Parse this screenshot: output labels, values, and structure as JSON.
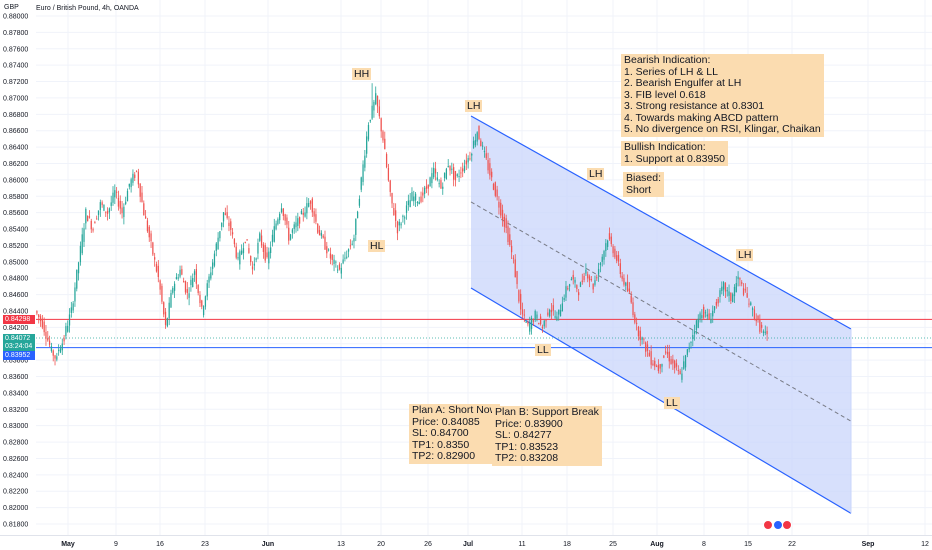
{
  "header": {
    "title": "Euro / British Pound, 4h, OANDA",
    "currency": "GBP"
  },
  "price_tags": {
    "resistance": "0.84298",
    "last_price": "0.84072",
    "countdown": "03:24:04",
    "support": "0.83952"
  },
  "labels": {
    "hh": "HH",
    "hl": "HL",
    "lh1": "LH",
    "lh2": "LH",
    "lh3": "LH",
    "ll1": "LL",
    "ll2": "LL"
  },
  "notes": {
    "bearish": "Bearish Indication:\n1. Series of LH & LL\n2. Bearish Engulfer at LH\n3. FIB level 0.618\n3. Strong resistance at 0.8301\n4. Towards making ABCD pattern\n5. No divergence on RSI, Klingar, Chaikan",
    "bullish": "Bullish Indication:\n1. Support at 0.83950",
    "biased": "Biased:\nShort",
    "plan_a": "Plan A: Short Now\nPrice: 0.84085\nSL: 0.84700\nTP1: 0.8350\nTP2: 0.82900",
    "plan_b": "Plan B: Support Break\nPrice: 0.83900\nSL: 0.84277\nTP1: 0.83523\nTP2: 0.83208"
  },
  "colors": {
    "up": "#26a69a",
    "down": "#ef5350",
    "channel_fill": "#c9d6fb",
    "channel_line": "#2962ff",
    "resistance_line": "#f23645",
    "support_line": "#2962ff",
    "note_bg": "#fbdcb0"
  },
  "chart_data": {
    "type": "candlestick",
    "title": "Euro / British Pound, 4h, OANDA",
    "ylim": [
      0.8176,
      0.8888
    ],
    "y_ticks": [
      "0.88000",
      "0.87800",
      "0.87600",
      "0.87400",
      "0.87200",
      "0.87000",
      "0.86800",
      "0.86600",
      "0.86400",
      "0.86200",
      "0.86000",
      "0.85800",
      "0.85600",
      "0.85400",
      "0.85200",
      "0.85000",
      "0.84800",
      "0.84600",
      "0.84400",
      "0.84200",
      "0.84000",
      "0.83800",
      "0.83600",
      "0.83400",
      "0.83200",
      "0.83000",
      "0.82800",
      "0.82600",
      "0.82400",
      "0.82200",
      "0.82000",
      "0.81800"
    ],
    "x_ticks": [
      "May",
      "9",
      "16",
      "23",
      "Jun",
      "13",
      "20",
      "26",
      "Jul",
      "11",
      "18",
      "25",
      "Aug",
      "8",
      "15",
      "22",
      "Sep",
      "12"
    ],
    "horizontal_lines": [
      {
        "price": 0.84298,
        "role": "resistance"
      },
      {
        "price": 0.83952,
        "role": "support"
      }
    ],
    "channel": {
      "upper": [
        [
          "Jul",
          0.8678
        ],
        [
          "end",
          0.8418
        ]
      ],
      "lower": [
        [
          "Jul",
          0.8468
        ],
        [
          "end",
          0.8193
        ]
      ]
    },
    "swing_points": [
      {
        "label": "HH",
        "price": 0.8718
      },
      {
        "label": "HL",
        "price": 0.853
      },
      {
        "label": "LH",
        "price": 0.8678
      },
      {
        "label": "LH",
        "price": 0.8588
      },
      {
        "label": "LH",
        "price": 0.8488
      },
      {
        "label": "LL",
        "price": 0.8418
      },
      {
        "label": "LL",
        "price": 0.835
      }
    ],
    "close_path": [
      [
        0.844,
        0.8425
      ],
      [
        0.8425,
        0.8398
      ],
      [
        0.8395,
        0.838
      ],
      [
        0.839,
        0.8405
      ],
      [
        0.841,
        0.844
      ],
      [
        0.844,
        0.85
      ],
      [
        0.85,
        0.856
      ],
      [
        0.856,
        0.854
      ],
      [
        0.8545,
        0.857
      ],
      [
        0.857,
        0.856
      ],
      [
        0.856,
        0.8585
      ],
      [
        0.8585,
        0.856
      ],
      [
        0.856,
        0.8595
      ],
      [
        0.8595,
        0.861
      ],
      [
        0.861,
        0.856
      ],
      [
        0.856,
        0.852
      ],
      [
        0.852,
        0.848
      ],
      [
        0.848,
        0.842
      ],
      [
        0.842,
        0.847
      ],
      [
        0.847,
        0.849
      ],
      [
        0.849,
        0.846
      ],
      [
        0.846,
        0.849
      ],
      [
        0.849,
        0.844
      ],
      [
        0.844,
        0.848
      ],
      [
        0.848,
        0.852
      ],
      [
        0.852,
        0.856
      ],
      [
        0.856,
        0.854
      ],
      [
        0.854,
        0.85
      ],
      [
        0.85,
        0.853
      ],
      [
        0.853,
        0.849
      ],
      [
        0.849,
        0.853
      ],
      [
        0.853,
        0.85
      ],
      [
        0.85,
        0.854
      ],
      [
        0.854,
        0.857
      ],
      [
        0.857,
        0.853
      ],
      [
        0.853,
        0.8545
      ],
      [
        0.8545,
        0.856
      ],
      [
        0.856,
        0.8575
      ],
      [
        0.8575,
        0.854
      ],
      [
        0.854,
        0.852
      ],
      [
        0.852,
        0.85
      ],
      [
        0.85,
        0.849
      ],
      [
        0.849,
        0.851
      ],
      [
        0.851,
        0.853
      ],
      [
        0.853,
        0.86
      ],
      [
        0.86,
        0.867
      ],
      [
        0.867,
        0.87
      ],
      [
        0.87,
        0.865
      ],
      [
        0.865,
        0.858
      ],
      [
        0.858,
        0.854
      ],
      [
        0.854,
        0.856
      ],
      [
        0.856,
        0.858
      ],
      [
        0.858,
        0.8575
      ],
      [
        0.8575,
        0.859
      ],
      [
        0.859,
        0.861
      ],
      [
        0.861,
        0.859
      ],
      [
        0.859,
        0.862
      ],
      [
        0.862,
        0.86
      ],
      [
        0.86,
        0.8615
      ],
      [
        0.8615,
        0.863
      ],
      [
        0.863,
        0.866
      ],
      [
        0.866,
        0.863
      ],
      [
        0.863,
        0.86
      ],
      [
        0.86,
        0.857
      ],
      [
        0.857,
        0.854
      ],
      [
        0.854,
        0.85
      ],
      [
        0.85,
        0.844
      ],
      [
        0.844,
        0.842
      ],
      [
        0.842,
        0.8435
      ],
      [
        0.8435,
        0.842
      ],
      [
        0.842,
        0.8445
      ],
      [
        0.8445,
        0.843
      ],
      [
        0.843,
        0.846
      ],
      [
        0.846,
        0.848
      ],
      [
        0.848,
        0.8465
      ],
      [
        0.8465,
        0.849
      ],
      [
        0.849,
        0.847
      ],
      [
        0.847,
        0.85
      ],
      [
        0.85,
        0.853
      ],
      [
        0.853,
        0.851
      ],
      [
        0.851,
        0.848
      ],
      [
        0.848,
        0.846
      ],
      [
        0.846,
        0.842
      ],
      [
        0.842,
        0.84
      ],
      [
        0.84,
        0.838
      ],
      [
        0.838,
        0.837
      ],
      [
        0.837,
        0.839
      ],
      [
        0.839,
        0.8375
      ],
      [
        0.8375,
        0.836
      ],
      [
        0.836,
        0.839
      ],
      [
        0.839,
        0.842
      ],
      [
        0.842,
        0.844
      ],
      [
        0.844,
        0.843
      ],
      [
        0.843,
        0.845
      ],
      [
        0.845,
        0.847
      ],
      [
        0.847,
        0.8455
      ],
      [
        0.8455,
        0.848
      ],
      [
        0.848,
        0.846
      ],
      [
        0.846,
        0.844
      ],
      [
        0.844,
        0.842
      ],
      [
        0.842,
        0.8407
      ]
    ]
  }
}
